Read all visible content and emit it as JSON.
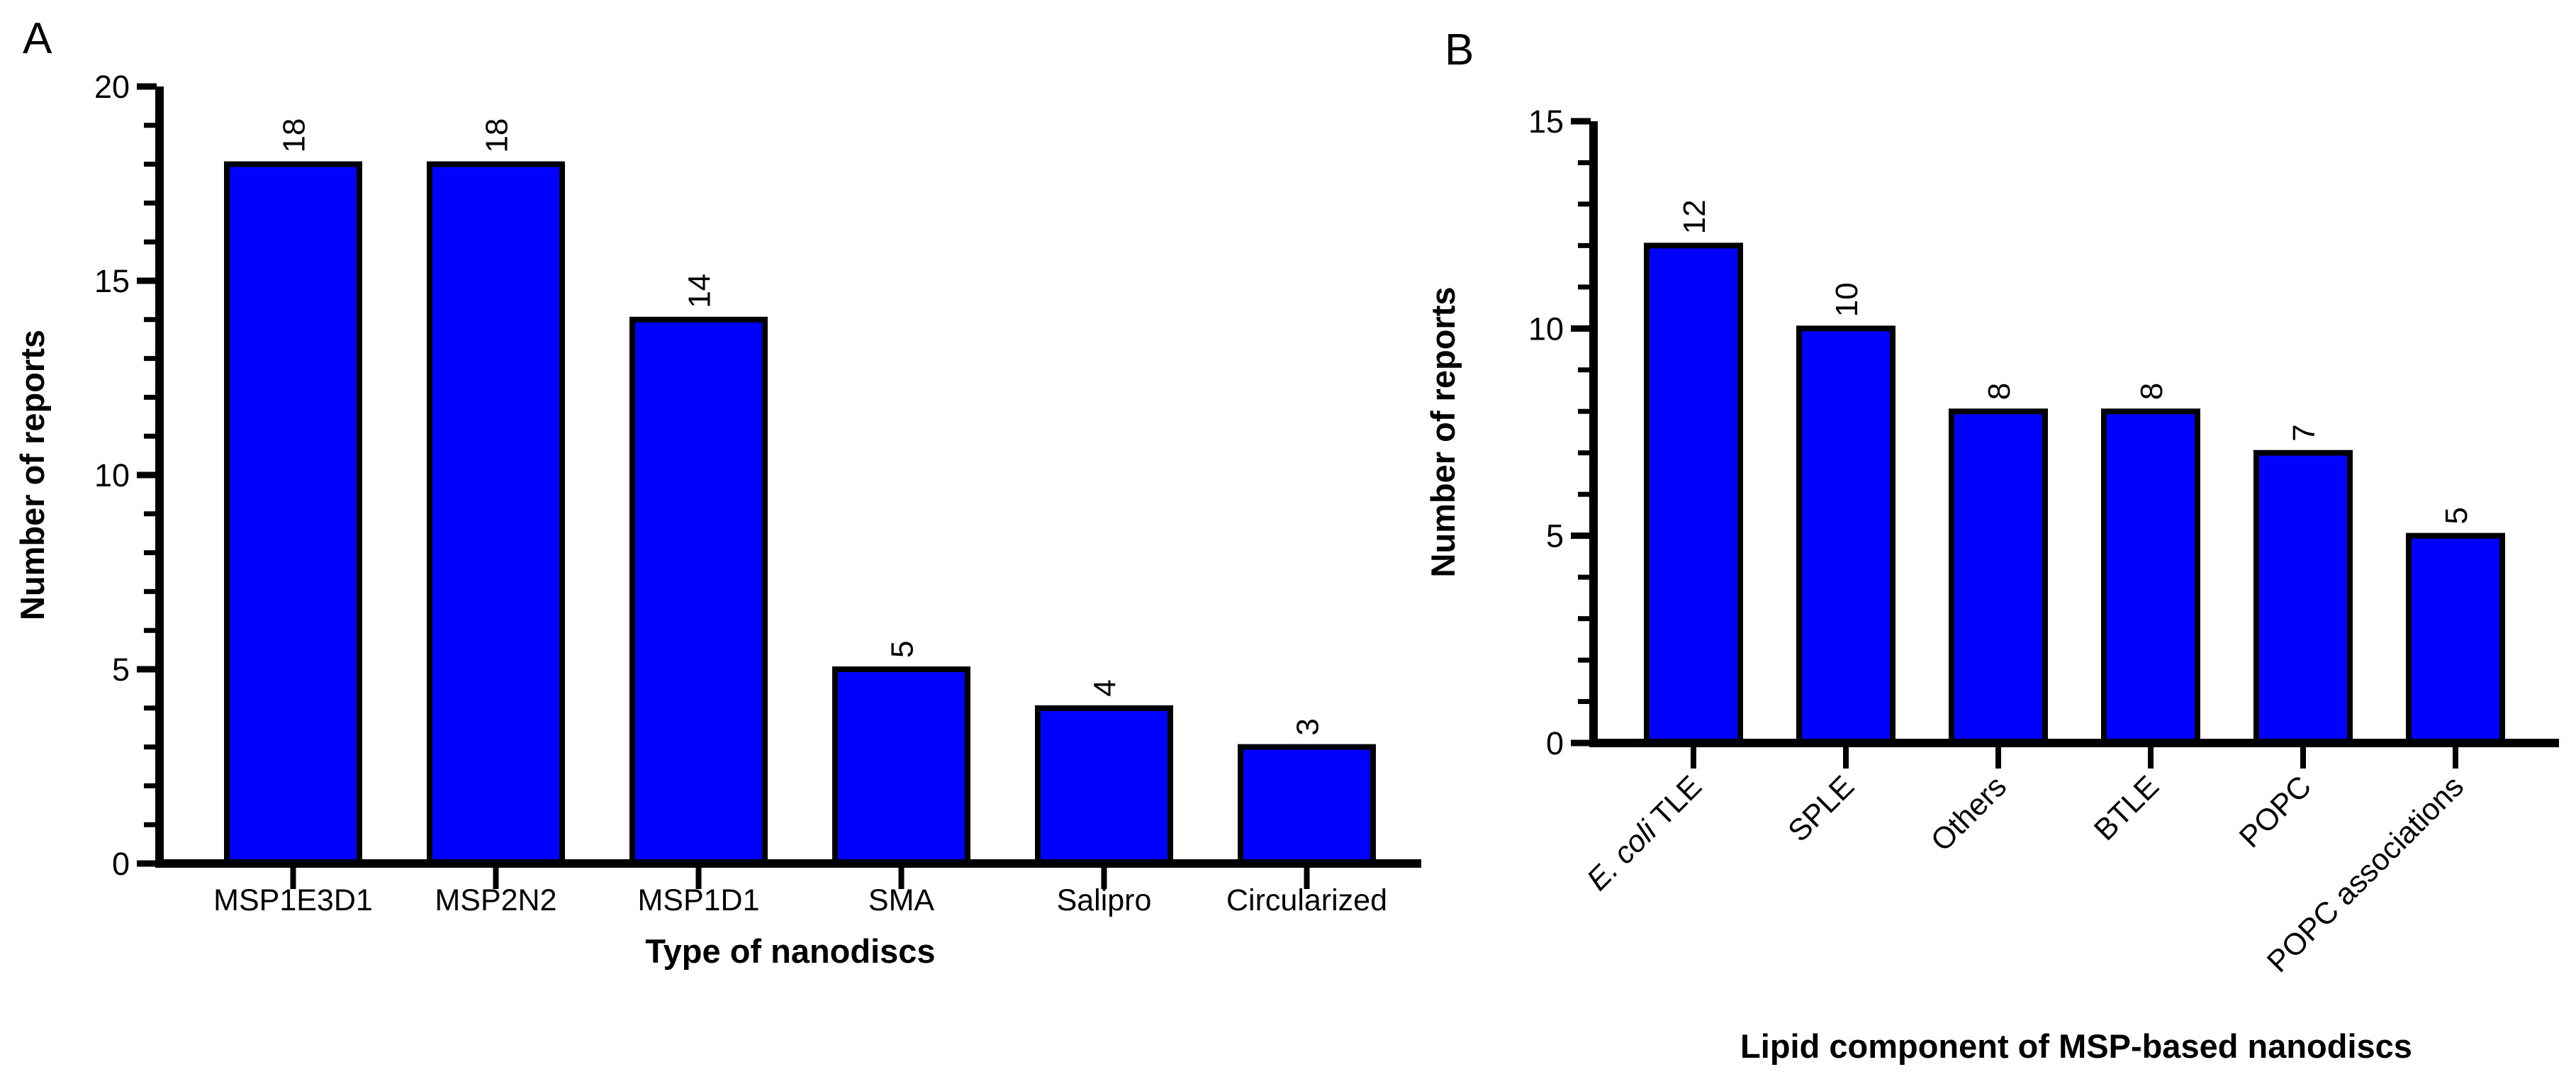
{
  "figure": {
    "background_color": "#ffffff",
    "bar_fill_color": "#0000ff",
    "bar_border_color": "#000000",
    "text_color": "#000000",
    "panels": [
      "A",
      "B"
    ]
  },
  "chart_data": [
    {
      "panel_label": "A",
      "type": "bar",
      "categories": [
        "MSP1E3D1",
        "MSP2N2",
        "MSP1D1",
        "SMA",
        "Salipro",
        "Circularized"
      ],
      "values": [
        18,
        18,
        14,
        5,
        4,
        3
      ],
      "value_labels": [
        "18",
        "18",
        "14",
        "5",
        "4",
        "3"
      ],
      "xlabel": "Type of nanodiscs",
      "ylabel": "Number of reports",
      "ylim": [
        0,
        20
      ],
      "ytick_major_step": 5,
      "ytick_minor_step": 1,
      "ytick_labels": [
        "0",
        "5",
        "10",
        "15",
        "20"
      ],
      "category_label_angle": 0,
      "value_label_angle": -90,
      "grid": false,
      "legend": "none",
      "bar_color": "#0000ff"
    },
    {
      "panel_label": "B",
      "type": "bar",
      "categories": [
        "E. coli TLE",
        "SPLE",
        "Others",
        "BTLE",
        "POPC",
        "POPC associations"
      ],
      "italic_prefix": {
        "0": "E. coli"
      },
      "values": [
        12,
        10,
        8,
        8,
        7,
        5
      ],
      "value_labels": [
        "12",
        "10",
        "8",
        "8",
        "7",
        "5"
      ],
      "xlabel": "Lipid component of MSP-based nanodiscs",
      "ylabel": "Number of reports",
      "ylim": [
        0,
        15
      ],
      "ytick_major_step": 5,
      "ytick_minor_step": 1,
      "ytick_labels": [
        "0",
        "5",
        "10",
        "15"
      ],
      "category_label_angle": -45,
      "value_label_angle": -90,
      "grid": false,
      "legend": "none",
      "bar_color": "#0000ff"
    }
  ]
}
